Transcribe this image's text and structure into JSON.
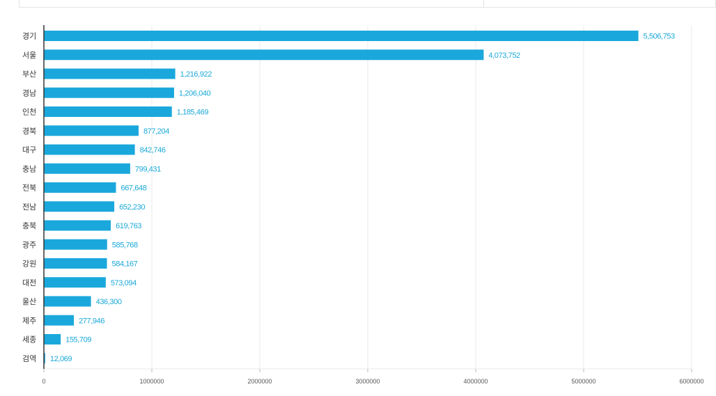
{
  "colors": {
    "bar": "#1aa8dc",
    "value_label": "#1aa8d8",
    "grid": "#e8e8e8",
    "axis": "#333333"
  },
  "chart_data": {
    "type": "bar",
    "orientation": "horizontal",
    "title": "",
    "xlabel": "",
    "ylabel": "",
    "xlim": [
      0,
      6000000
    ],
    "grid": true,
    "legend": "none",
    "categories": [
      "경기",
      "서울",
      "부산",
      "경남",
      "인천",
      "경북",
      "대구",
      "충남",
      "전북",
      "전남",
      "충북",
      "광주",
      "강원",
      "대전",
      "울산",
      "제주",
      "세종",
      "검역"
    ],
    "values": [
      5506753,
      4073752,
      1216922,
      1206040,
      1185469,
      877204,
      842746,
      799431,
      667648,
      652230,
      619763,
      585768,
      584167,
      573094,
      436300,
      277946,
      155709,
      12069
    ],
    "value_labels": [
      "5,506,753",
      "4,073,752",
      "1,216,922",
      "1,206,040",
      "1,185,469",
      "877,204",
      "842,746",
      "799,431",
      "667,648",
      "652,230",
      "619,763",
      "585,768",
      "584,167",
      "573,094",
      "436,300",
      "277,946",
      "155,709",
      "12,069"
    ],
    "ticks": [
      0,
      1000000,
      2000000,
      3000000,
      4000000,
      5000000,
      6000000
    ],
    "tick_labels": [
      "0",
      "1000000",
      "2000000",
      "3000000",
      "4000000",
      "5000000",
      "6000000"
    ]
  }
}
